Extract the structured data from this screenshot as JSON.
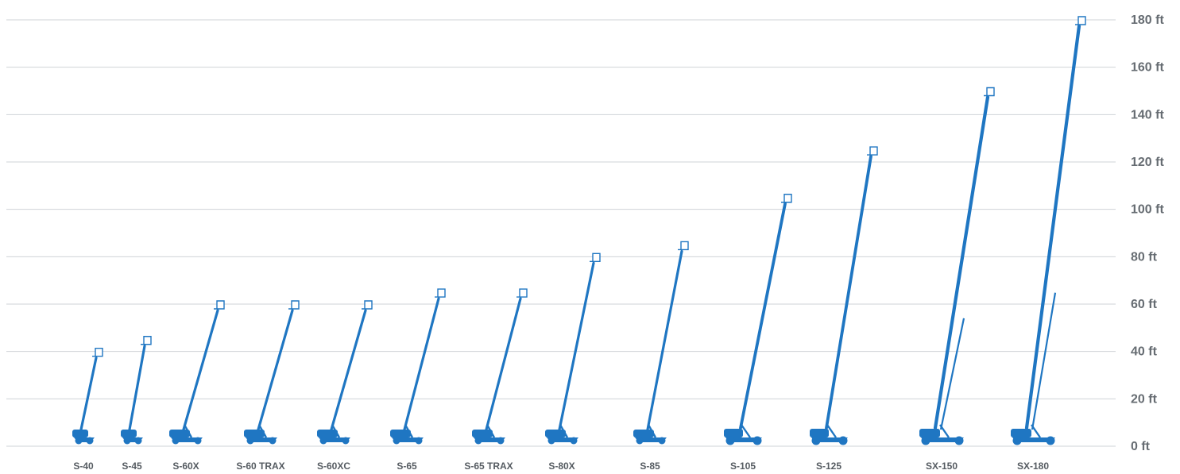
{
  "chart_data": {
    "type": "bar",
    "categories": [
      "S-40",
      "S-45",
      "S-60X",
      "S-60 TRAX",
      "S-60XC",
      "S-65",
      "S-65 TRAX",
      "S-80X",
      "S-85",
      "S-105",
      "S-125",
      "SX-150",
      "SX-180"
    ],
    "values": [
      40,
      45,
      60,
      60,
      60,
      65,
      65,
      80,
      85,
      105,
      125,
      150,
      180
    ],
    "ylim": [
      0,
      180
    ],
    "yticks": [
      0,
      20,
      40,
      60,
      80,
      100,
      120,
      140,
      160,
      180
    ],
    "ytick_labels": [
      "0 ft",
      "20 ft",
      "40 ft",
      "60 ft",
      "80 ft",
      "100 ft",
      "120 ft",
      "140 ft",
      "160 ft",
      "180 ft"
    ],
    "title": "",
    "xlabel": "",
    "ylabel": "",
    "grid": true,
    "colors": {
      "mark": "#1f76c2",
      "grid": "#cfd3d7",
      "y_tick_text": "#666c72",
      "x_tick_text": "#555b61"
    }
  }
}
